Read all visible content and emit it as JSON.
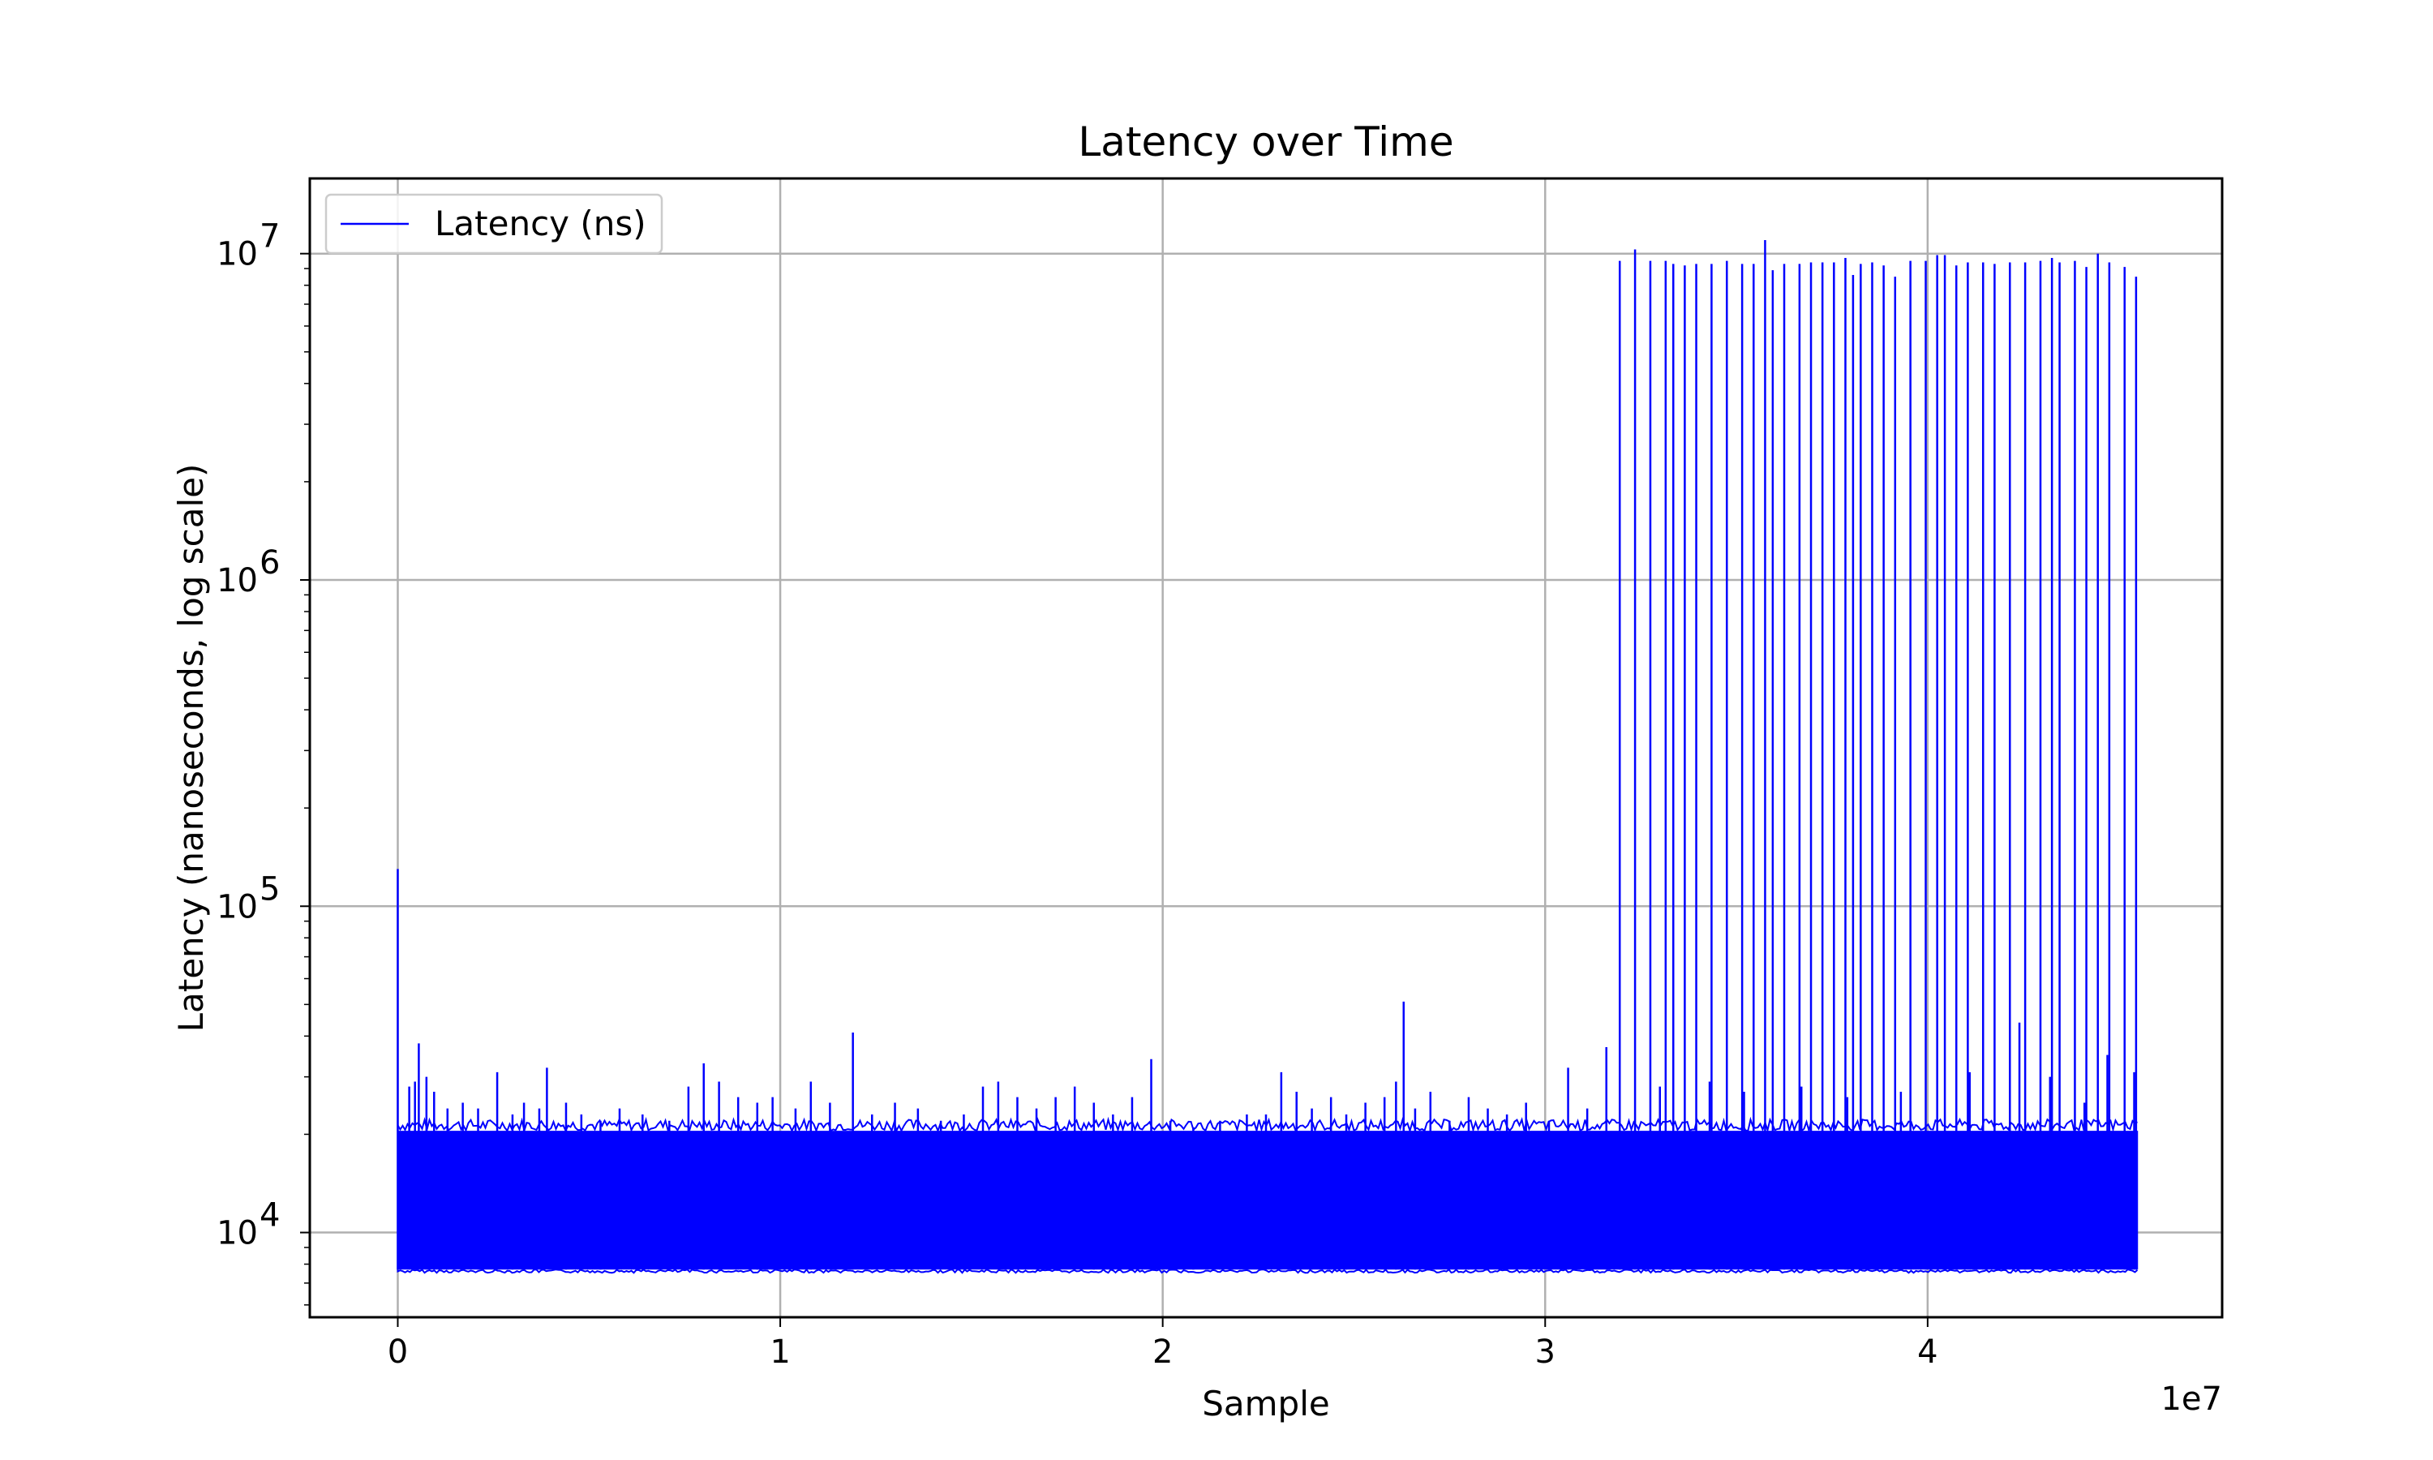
{
  "chart_data": {
    "type": "line",
    "title": "Latency over Time",
    "xlabel": "Sample",
    "ylabel": "Latency (nanoseconds, log scale)",
    "x_offset_label": "1e7",
    "xlim": [
      -2300000,
      47700000
    ],
    "ylim": [
      5500,
      17000000
    ],
    "y_scale": "log",
    "x_ticks": [
      {
        "value": 0,
        "label": "0"
      },
      {
        "value": 10000000,
        "label": "1"
      },
      {
        "value": 20000000,
        "label": "2"
      },
      {
        "value": 30000000,
        "label": "3"
      },
      {
        "value": 40000000,
        "label": "4"
      }
    ],
    "y_ticks": [
      {
        "value": 10000,
        "base": "10",
        "exp": "4"
      },
      {
        "value": 100000,
        "base": "10",
        "exp": "5"
      },
      {
        "value": 1000000,
        "base": "10",
        "exp": "6"
      },
      {
        "value": 10000000,
        "base": "10",
        "exp": "7"
      }
    ],
    "grid": true,
    "legend_position": "top-left",
    "colors": {
      "series": "#0000ff",
      "grid": "#b0b0b0",
      "axes": "#000000"
    },
    "series": [
      {
        "name": "Latency (ns)",
        "baseline_band": {
          "x_start": 0,
          "x_end": 45500000,
          "low": 7700,
          "high": 20500
        },
        "spikes": [
          [
            0,
            130000
          ],
          [
            300000,
            28000
          ],
          [
            450000,
            29000
          ],
          [
            550000,
            38000
          ],
          [
            750000,
            30000
          ],
          [
            950000,
            27000
          ],
          [
            1300000,
            24000
          ],
          [
            1700000,
            25000
          ],
          [
            2100000,
            24000
          ],
          [
            2600000,
            31000
          ],
          [
            3000000,
            23000
          ],
          [
            3300000,
            25000
          ],
          [
            3700000,
            24000
          ],
          [
            3900000,
            32000
          ],
          [
            4400000,
            25000
          ],
          [
            4800000,
            23000
          ],
          [
            5300000,
            22000
          ],
          [
            5800000,
            24000
          ],
          [
            6400000,
            23000
          ],
          [
            7100000,
            22000
          ],
          [
            7600000,
            28000
          ],
          [
            8000000,
            33000
          ],
          [
            8400000,
            29000
          ],
          [
            8900000,
            26000
          ],
          [
            9400000,
            25000
          ],
          [
            9800000,
            26000
          ],
          [
            10400000,
            24000
          ],
          [
            10800000,
            29000
          ],
          [
            11300000,
            25000
          ],
          [
            11900000,
            41000
          ],
          [
            12400000,
            23000
          ],
          [
            13000000,
            25000
          ],
          [
            13600000,
            24000
          ],
          [
            14200000,
            22000
          ],
          [
            14800000,
            23000
          ],
          [
            15300000,
            28000
          ],
          [
            15700000,
            29000
          ],
          [
            16200000,
            26000
          ],
          [
            16700000,
            24000
          ],
          [
            17200000,
            26000
          ],
          [
            17700000,
            28000
          ],
          [
            18200000,
            25000
          ],
          [
            18700000,
            23000
          ],
          [
            19200000,
            26000
          ],
          [
            19700000,
            34000
          ],
          [
            20200000,
            22000
          ],
          [
            20800000,
            21000
          ],
          [
            21500000,
            22000
          ],
          [
            22200000,
            23000
          ],
          [
            22700000,
            23000
          ],
          [
            23100000,
            31000
          ],
          [
            23500000,
            27000
          ],
          [
            23900000,
            24000
          ],
          [
            24400000,
            26000
          ],
          [
            24800000,
            23000
          ],
          [
            25300000,
            25000
          ],
          [
            25800000,
            26000
          ],
          [
            26100000,
            29000
          ],
          [
            26300000,
            51000
          ],
          [
            26600000,
            24000
          ],
          [
            27000000,
            27000
          ],
          [
            27500000,
            22000
          ],
          [
            28000000,
            26000
          ],
          [
            28500000,
            24000
          ],
          [
            29000000,
            23000
          ],
          [
            29500000,
            25000
          ],
          [
            30100000,
            22000
          ],
          [
            30600000,
            32000
          ],
          [
            31100000,
            24000
          ],
          [
            31600000,
            37000
          ],
          [
            33000000,
            28000
          ],
          [
            34300000,
            29000
          ],
          [
            35200000,
            27000
          ],
          [
            36700000,
            28000
          ],
          [
            37900000,
            26000
          ],
          [
            39300000,
            27000
          ],
          [
            41100000,
            31000
          ],
          [
            42400000,
            44000
          ],
          [
            43200000,
            30000
          ],
          [
            44100000,
            25000
          ],
          [
            44700000,
            35000
          ],
          [
            45400000,
            31000
          ],
          [
            31950000,
            9500000
          ],
          [
            32350000,
            10300000
          ],
          [
            32750000,
            9500000
          ],
          [
            33150000,
            9500000
          ],
          [
            33350000,
            9300000
          ],
          [
            33650000,
            9200000
          ],
          [
            33950000,
            9300000
          ],
          [
            34350000,
            9300000
          ],
          [
            34750000,
            9500000
          ],
          [
            35150000,
            9300000
          ],
          [
            35450000,
            9300000
          ],
          [
            35750000,
            11000000
          ],
          [
            35950000,
            8900000
          ],
          [
            36250000,
            9300000
          ],
          [
            36650000,
            9300000
          ],
          [
            36950000,
            9400000
          ],
          [
            37250000,
            9400000
          ],
          [
            37550000,
            9400000
          ],
          [
            37850000,
            9700000
          ],
          [
            38050000,
            8600000
          ],
          [
            38250000,
            9300000
          ],
          [
            38550000,
            9400000
          ],
          [
            38850000,
            9200000
          ],
          [
            39150000,
            8500000
          ],
          [
            39550000,
            9500000
          ],
          [
            39950000,
            9500000
          ],
          [
            40250000,
            9900000
          ],
          [
            40450000,
            9900000
          ],
          [
            40750000,
            9200000
          ],
          [
            41050000,
            9400000
          ],
          [
            41450000,
            9400000
          ],
          [
            41750000,
            9300000
          ],
          [
            42150000,
            9400000
          ],
          [
            42550000,
            9400000
          ],
          [
            42950000,
            9500000
          ],
          [
            43250000,
            9700000
          ],
          [
            43450000,
            9400000
          ],
          [
            43850000,
            9500000
          ],
          [
            44150000,
            9100000
          ],
          [
            44450000,
            10000000
          ],
          [
            44750000,
            9400000
          ],
          [
            45150000,
            9100000
          ],
          [
            45450000,
            8500000
          ]
        ]
      }
    ]
  }
}
